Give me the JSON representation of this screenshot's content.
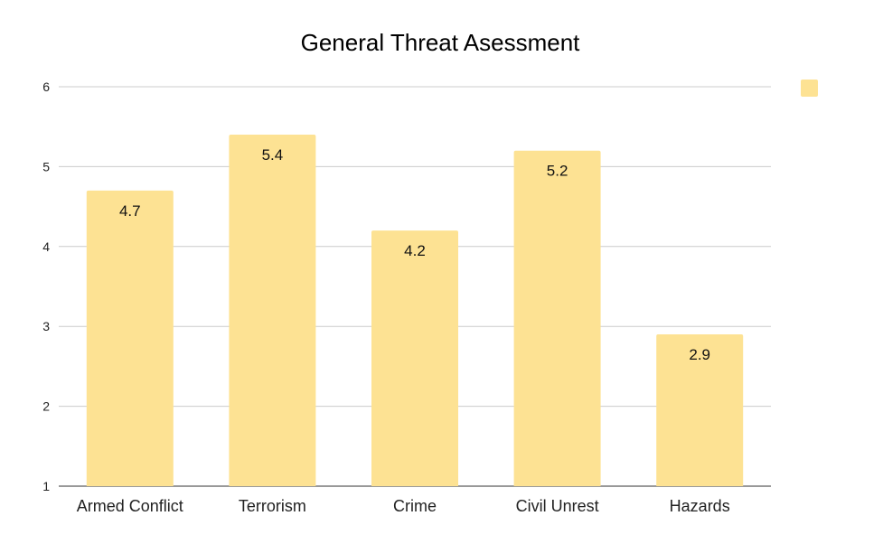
{
  "chart_data": {
    "type": "bar",
    "title": "General Threat Asessment",
    "categories": [
      "Armed Conflict",
      "Terrorism",
      "Crime",
      "Civil Unrest",
      "Hazards"
    ],
    "values": [
      4.7,
      5.4,
      4.2,
      5.2,
      2.9
    ],
    "data_labels": [
      "4.7",
      "5.4",
      "4.2",
      "5.2",
      "2.9"
    ],
    "ylim": [
      1,
      6
    ],
    "yticks": [
      "1",
      "2",
      "3",
      "4",
      "5",
      "6"
    ],
    "grid": true,
    "legend": "top-right",
    "bar_color": "#fde293"
  }
}
